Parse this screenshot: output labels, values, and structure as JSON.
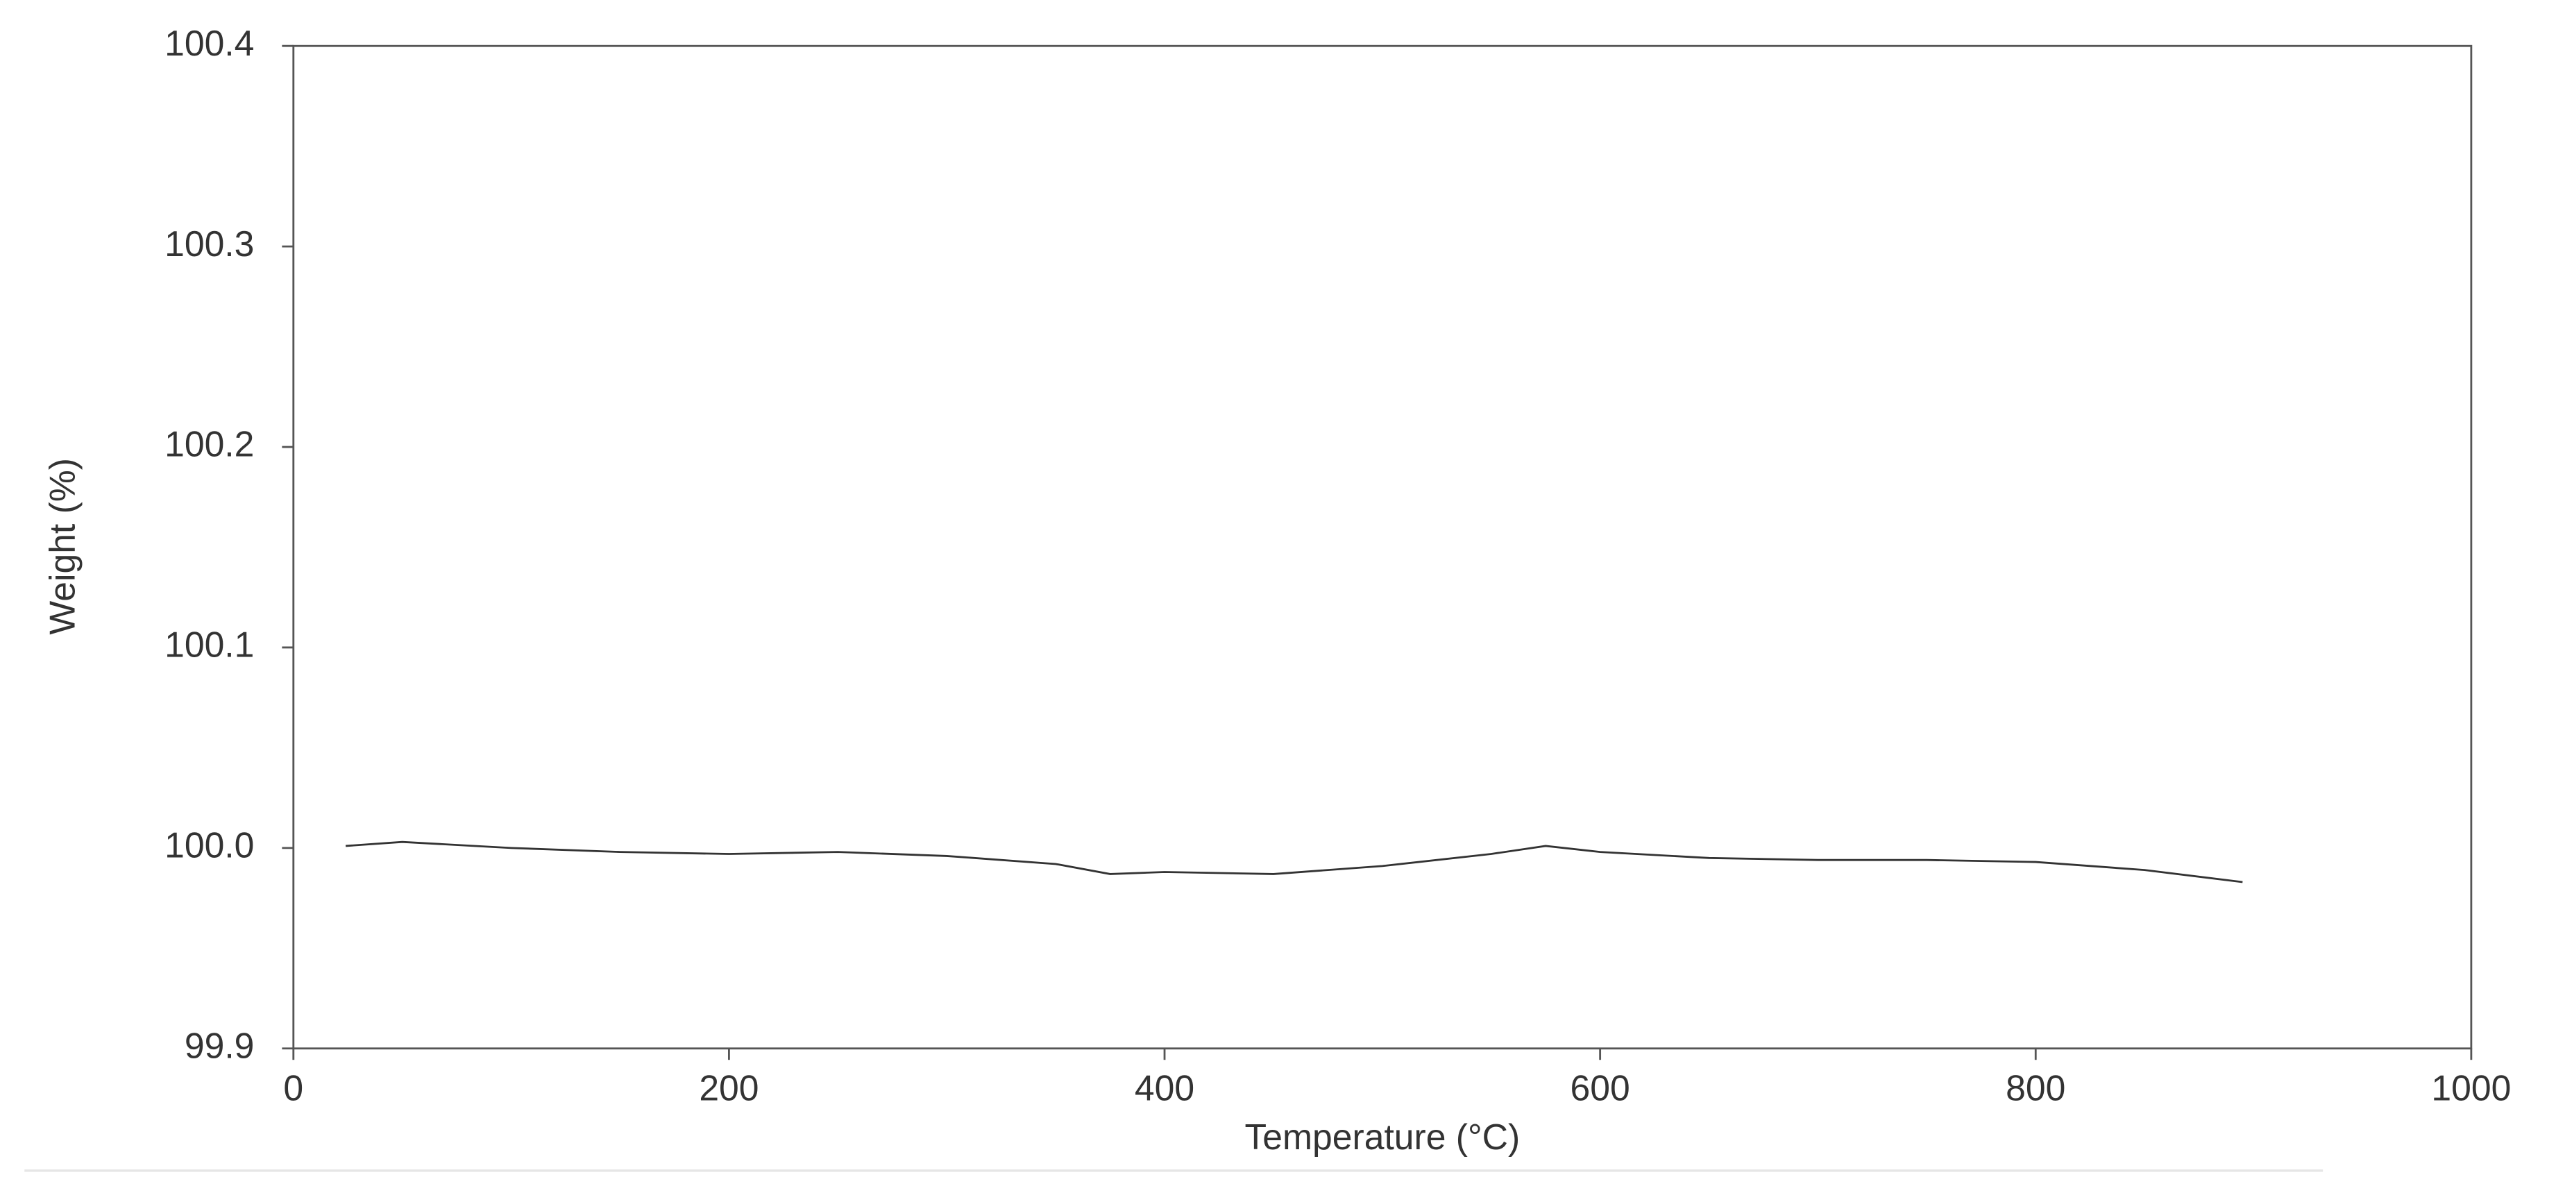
{
  "chart_data": {
    "type": "line",
    "x_label": "Temperature (°C)",
    "y_label": "Weight (%)",
    "x": [
      24,
      50,
      100,
      150,
      200,
      250,
      300,
      350,
      375,
      400,
      450,
      500,
      550,
      575,
      600,
      650,
      700,
      750,
      800,
      850,
      895
    ],
    "values": [
      100.001,
      100.003,
      100.0,
      99.998,
      99.997,
      99.998,
      99.996,
      99.992,
      99.987,
      99.988,
      99.987,
      99.991,
      99.997,
      100.001,
      99.998,
      99.995,
      99.994,
      99.994,
      99.993,
      99.989,
      99.983
    ],
    "color": "#333333",
    "xlim": [
      0,
      1000
    ],
    "xticks": [
      0,
      200,
      400,
      600,
      800,
      1000
    ],
    "ylim": [
      99.9,
      100.4
    ],
    "yticks": [
      99.9,
      {
        "value": 100,
        "label": "100.0"
      },
      100.1,
      100.2,
      100.3,
      100.4
    ],
    "grid": false
  }
}
